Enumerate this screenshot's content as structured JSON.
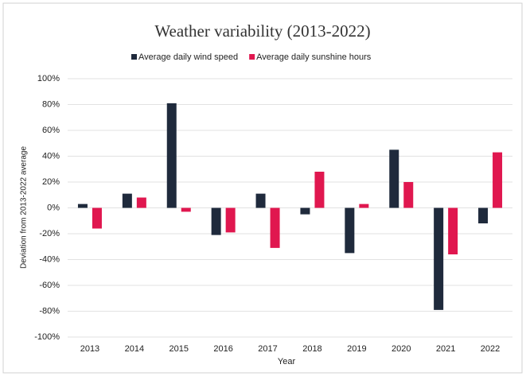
{
  "chart_data": {
    "type": "bar",
    "title": "Weather variability (2013-2022)",
    "x_label": "Year",
    "y_label": "Deviation from 2013-2022 average",
    "categories": [
      "2013",
      "2014",
      "2015",
      "2016",
      "2017",
      "2018",
      "2019",
      "2020",
      "2021",
      "2022"
    ],
    "series": [
      {
        "name": "Average daily wind speed",
        "color": "#1f2a3c",
        "values": [
          3,
          11,
          81,
          -21,
          11,
          -5,
          -35,
          45,
          -79,
          -12
        ]
      },
      {
        "name": "Average daily sunshine hours",
        "color": "#e0174f",
        "values": [
          -16,
          8,
          -3,
          -19,
          -31,
          28,
          3,
          20,
          -36,
          43
        ]
      }
    ],
    "ylim": [
      -100,
      100
    ],
    "yticks": [
      {
        "value": -100,
        "label": "-100%"
      },
      {
        "value": -80,
        "label": "-80%"
      },
      {
        "value": -60,
        "label": "-60%"
      },
      {
        "value": -40,
        "label": "-40%"
      },
      {
        "value": -20,
        "label": "-20%"
      },
      {
        "value": 0,
        "label": "0%"
      },
      {
        "value": 20,
        "label": "20%"
      },
      {
        "value": 40,
        "label": "40%"
      },
      {
        "value": 60,
        "label": "60%"
      },
      {
        "value": 80,
        "label": "80%"
      },
      {
        "value": 100,
        "label": "100%"
      }
    ],
    "grid": true,
    "legend": "top"
  }
}
